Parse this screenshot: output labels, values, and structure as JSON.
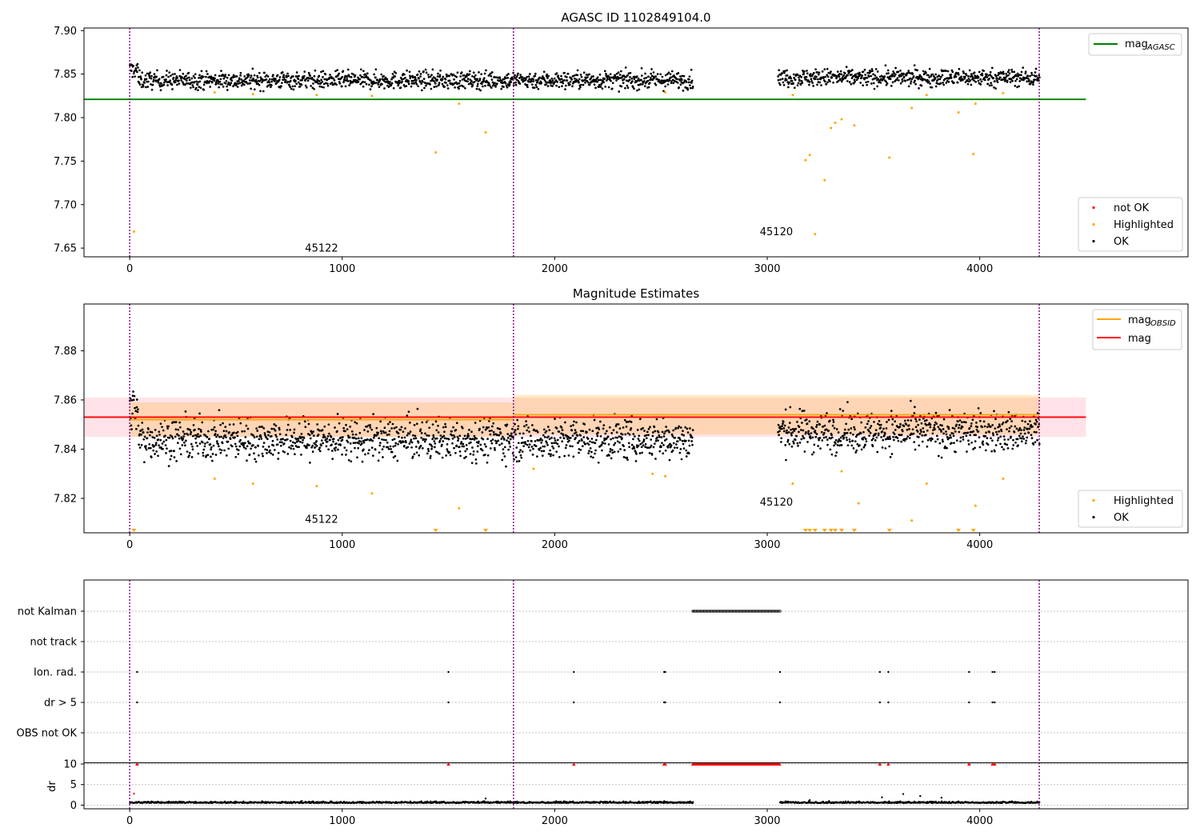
{
  "figure": {
    "panel1_title": "AGASC ID 1102849104.0",
    "panel2_title": "Magnitude Estimates"
  },
  "colors": {
    "ok": "#000000",
    "highlighted": "#ffa500",
    "not_ok": "#ff0000",
    "mag_agasc": "#008000",
    "mag_obsid": "#ffa500",
    "mag": "#ff0000",
    "obsid_boundary": "#800080",
    "mag_band": "#ffc0cb"
  },
  "chart_data": [
    {
      "type": "scatter",
      "title": "AGASC ID 1102849104.0",
      "xlim": [
        -215,
        4980
      ],
      "ylim": [
        7.64,
        7.903
      ],
      "yticks": [
        "7.65",
        "7.70",
        "7.75",
        "7.80",
        "7.85",
        "7.90"
      ],
      "xticks": [
        "0",
        "1000",
        "2000",
        "3000",
        "4000"
      ],
      "obsid_boundaries": [
        0,
        1806,
        4280
      ],
      "obsid_labels": [
        {
          "text": "45122",
          "x": 903,
          "y": 7.646
        },
        {
          "text": "45120",
          "x": 3043,
          "y": 7.665
        }
      ],
      "mag_agasc": 7.821,
      "mag_agasc_x_range": [
        -215,
        4500
      ],
      "legend_lines": [
        {
          "name": "mag",
          "sub": "AGASC",
          "color": "#008000",
          "position": "upper-right"
        }
      ],
      "legend_points": [
        {
          "name": "not OK",
          "color": "#ff0000"
        },
        {
          "name": "Highlighted",
          "color": "#ffa500"
        },
        {
          "name": "OK",
          "color": "#000000"
        }
      ],
      "ok_segments": [
        {
          "x_range": [
            0,
            2650
          ],
          "center": 7.843,
          "spread": 0.009
        },
        {
          "x_range": [
            3050,
            4280
          ],
          "center": 7.846,
          "spread": 0.009
        }
      ],
      "highlighted_points": [
        [
          20,
          7.669
        ],
        [
          1440,
          7.76
        ],
        [
          1550,
          7.816
        ],
        [
          1675,
          7.783
        ],
        [
          3180,
          7.751
        ],
        [
          3200,
          7.757
        ],
        [
          3225,
          7.666
        ],
        [
          3270,
          7.728
        ],
        [
          3300,
          7.788
        ],
        [
          3320,
          7.794
        ],
        [
          3350,
          7.798
        ],
        [
          3410,
          7.791
        ],
        [
          3575,
          7.754
        ],
        [
          3680,
          7.811
        ],
        [
          3900,
          7.806
        ],
        [
          3980,
          7.816
        ],
        [
          3970,
          7.758
        ],
        [
          1140,
          7.825
        ],
        [
          880,
          7.826
        ],
        [
          580,
          7.827
        ],
        [
          400,
          7.829
        ],
        [
          3120,
          7.826
        ],
        [
          3750,
          7.826
        ],
        [
          4110,
          7.828
        ],
        [
          2520,
          7.829
        ]
      ]
    },
    {
      "type": "scatter",
      "title": "Magnitude Estimates",
      "xlim": [
        -215,
        4980
      ],
      "ylim": [
        7.806,
        7.899
      ],
      "yticks": [
        "7.82",
        "7.84",
        "7.86",
        "7.88"
      ],
      "xticks": [
        "0",
        "1000",
        "2000",
        "3000",
        "4000"
      ],
      "obsid_boundaries": [
        0,
        1806,
        4280
      ],
      "obsid_labels": [
        {
          "text": "45122",
          "x": 903,
          "y": 7.81
        },
        {
          "text": "45120",
          "x": 3043,
          "y": 7.817
        }
      ],
      "mag": 7.853,
      "mag_band": [
        7.845,
        7.861
      ],
      "mag_x_range": [
        -215,
        4500
      ],
      "mag_obsid": [
        {
          "x_range": [
            0,
            1806
          ],
          "value": 7.852,
          "band": [
            7.845,
            7.859
          ]
        },
        {
          "x_range": [
            1806,
            4280
          ],
          "value": 7.854,
          "band": [
            7.846,
            7.862
          ]
        }
      ],
      "legend_lines": [
        {
          "name": "mag",
          "sub": "OBSID",
          "color": "#ffa500"
        },
        {
          "name": "mag",
          "sub": "",
          "color": "#ff0000"
        }
      ],
      "legend_points": [
        {
          "name": "Highlighted",
          "color": "#ffa500"
        },
        {
          "name": "OK",
          "color": "#000000"
        }
      ],
      "ok_segments": [
        {
          "x_range": [
            0,
            2650
          ],
          "center": 7.844,
          "spread": 0.0075
        },
        {
          "x_range": [
            3050,
            4280
          ],
          "center": 7.847,
          "spread": 0.0075
        }
      ],
      "highlighted_points": [
        [
          1550,
          7.816
        ],
        [
          3680,
          7.811
        ],
        [
          3980,
          7.817
        ],
        [
          3430,
          7.818
        ],
        [
          1140,
          7.822
        ],
        [
          880,
          7.825
        ],
        [
          580,
          7.826
        ],
        [
          400,
          7.828
        ],
        [
          3120,
          7.826
        ],
        [
          3750,
          7.826
        ],
        [
          4110,
          7.828
        ],
        [
          2520,
          7.829
        ],
        [
          2460,
          7.83
        ],
        [
          3350,
          7.831
        ],
        [
          1900,
          7.832
        ]
      ],
      "below_range_markers": [
        20,
        1440,
        1675,
        3180,
        3200,
        3225,
        3270,
        3300,
        3320,
        3350,
        3410,
        3575,
        3900,
        3970
      ]
    },
    {
      "type": "scatter",
      "title": "",
      "xlim": [
        -215,
        4980
      ],
      "xticks": [
        "0",
        "1000",
        "2000",
        "3000",
        "4000"
      ],
      "obsid_boundaries": [
        0,
        1806,
        4280
      ],
      "flag_rows": [
        "not Kalman",
        "not track",
        "Ion. rad.",
        "dr > 5",
        "OBS not OK"
      ],
      "flags": {
        "not Kalman": {
          "ranges": [
            [
              2650,
              3060
            ]
          ],
          "points": []
        },
        "not track": {
          "ranges": [],
          "points": []
        },
        "Ion. rad.": {
          "ranges": [],
          "points": [
            35,
            1500,
            2090,
            2515,
            2520,
            3060,
            3530,
            3570,
            3950,
            4060,
            4070
          ]
        },
        "dr > 5": {
          "ranges": [],
          "points": [
            35,
            1500,
            2090,
            2515,
            2520,
            3060,
            3530,
            3570,
            3950,
            4060,
            4070
          ]
        },
        "OBS not OK": {
          "ranges": [],
          "points": []
        }
      },
      "dr": {
        "ylabel": "dr",
        "ylim": [
          -0.5,
          10
        ],
        "yticks": [
          "0",
          "5",
          "10"
        ],
        "segments": [
          {
            "x_range": [
              0,
              2650
            ]
          },
          {
            "x_range": [
              3060,
              4280
            ]
          }
        ],
        "outliers": [
          [
            20,
            2.8
          ],
          [
            1675,
            1.6
          ],
          [
            3200,
            1.2
          ],
          [
            3640,
            2.7
          ],
          [
            3720,
            2.2
          ],
          [
            3820,
            1.8
          ],
          [
            3540,
            1.9
          ]
        ],
        "clipped": {
          "ranges": [
            [
              2650,
              3060
            ]
          ],
          "points": [
            35,
            1500,
            2090,
            2515,
            2520,
            3530,
            3570,
            3950,
            4060,
            4070
          ]
        }
      }
    }
  ]
}
